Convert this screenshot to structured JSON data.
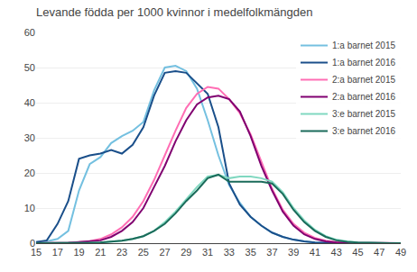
{
  "chart_data": {
    "type": "line",
    "title": "Levande födda per 1000 kvinnor i medelfolkmängden",
    "x": [
      15,
      16,
      17,
      18,
      19,
      20,
      21,
      22,
      23,
      24,
      25,
      26,
      27,
      28,
      29,
      30,
      31,
      32,
      33,
      34,
      35,
      36,
      37,
      38,
      39,
      40,
      41,
      42,
      43,
      44,
      45,
      46,
      47,
      48,
      49
    ],
    "series": [
      {
        "name": "1:a barnet 2015",
        "color": "#74c0e0",
        "values": [
          0.3,
          0.5,
          1.2,
          3.5,
          15.0,
          22.5,
          24.5,
          28.5,
          30.5,
          32.0,
          34.5,
          43.5,
          50.0,
          50.5,
          49.0,
          44.0,
          35.0,
          25.0,
          16.5,
          11.5,
          7.5,
          5.0,
          3.0,
          1.8,
          1.0,
          0.5,
          0.2,
          0.1,
          0.05,
          0.02,
          0.01,
          0.0,
          0.0,
          0.0,
          0.0
        ]
      },
      {
        "name": "1:a barnet 2016",
        "color": "#1a4f8a",
        "values": [
          0.3,
          0.8,
          5.5,
          12.0,
          24.0,
          25.0,
          25.5,
          26.5,
          25.5,
          28.0,
          33.0,
          42.0,
          48.5,
          49.0,
          48.5,
          45.5,
          42.5,
          33.0,
          17.0,
          11.0,
          7.5,
          5.0,
          3.0,
          1.8,
          1.0,
          0.5,
          0.2,
          0.1,
          0.05,
          0.02,
          0.01,
          0.0,
          0.0,
          0.0,
          0.0
        ]
      },
      {
        "name": "2:a barnet 2015",
        "color": "#ff6eb4",
        "values": [
          0.0,
          0.0,
          0.0,
          0.1,
          0.3,
          0.6,
          1.2,
          2.5,
          4.5,
          7.5,
          12.0,
          18.0,
          25.0,
          32.0,
          38.5,
          42.5,
          44.5,
          44.0,
          41.0,
          37.0,
          31.0,
          23.0,
          15.5,
          9.5,
          5.5,
          3.0,
          1.5,
          0.7,
          0.3,
          0.1,
          0.05,
          0.02,
          0.0,
          0.0,
          0.0
        ]
      },
      {
        "name": "2:a barnet 2016",
        "color": "#800070",
        "values": [
          0.0,
          0.0,
          0.0,
          0.1,
          0.3,
          0.5,
          0.8,
          1.8,
          3.5,
          6.0,
          10.0,
          16.0,
          22.0,
          29.0,
          35.0,
          39.5,
          41.5,
          42.0,
          41.0,
          37.5,
          30.5,
          22.0,
          15.0,
          9.0,
          5.0,
          2.5,
          1.2,
          0.5,
          0.2,
          0.1,
          0.05,
          0.0,
          0.0,
          0.0,
          0.0
        ]
      },
      {
        "name": "3:e barnet 2015",
        "color": "#80d8c0",
        "values": [
          0.0,
          0.0,
          0.0,
          0.0,
          0.0,
          0.1,
          0.2,
          0.4,
          0.7,
          1.2,
          2.0,
          3.5,
          6.0,
          9.0,
          12.5,
          16.0,
          19.0,
          19.5,
          18.5,
          19.0,
          19.0,
          18.5,
          17.5,
          14.5,
          10.0,
          6.5,
          3.8,
          2.0,
          1.0,
          0.5,
          0.2,
          0.1,
          0.05,
          0.0,
          0.0
        ]
      },
      {
        "name": "3:e barnet 2016",
        "color": "#1a6b5a",
        "values": [
          0.0,
          0.0,
          0.0,
          0.0,
          0.0,
          0.1,
          0.2,
          0.4,
          0.7,
          1.2,
          2.0,
          3.5,
          5.5,
          8.5,
          12.0,
          15.0,
          18.5,
          19.5,
          17.5,
          17.5,
          17.5,
          17.5,
          17.0,
          14.0,
          9.5,
          6.0,
          3.5,
          1.8,
          0.8,
          0.4,
          0.2,
          0.1,
          0.05,
          0.0,
          0.0
        ]
      }
    ],
    "xlim": [
      15,
      49
    ],
    "xticks": [
      15,
      17,
      19,
      21,
      23,
      25,
      27,
      29,
      31,
      33,
      35,
      37,
      39,
      41,
      43,
      45,
      47,
      49
    ],
    "ylim": [
      0,
      60
    ],
    "yticks": [
      0,
      10,
      20,
      30,
      40,
      50,
      60
    ],
    "grid": "y",
    "legend": "upper right"
  }
}
